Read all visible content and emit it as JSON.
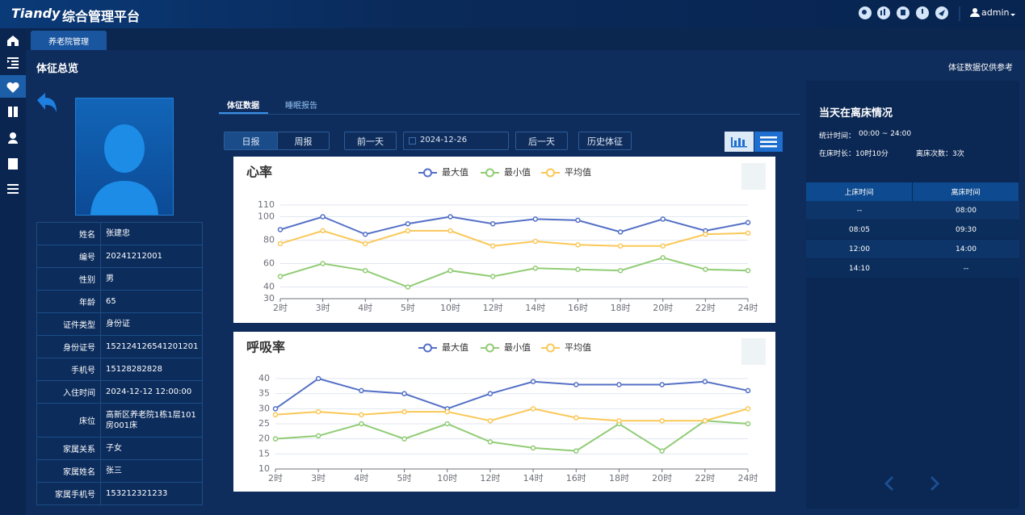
{
  "header": {
    "brand": "Tiandy",
    "title": "综合管理平台",
    "user": "admin"
  },
  "tabs": [
    "养老院管理"
  ],
  "page": {
    "title": "体征总览",
    "note": "体征数据仅供参考"
  },
  "profile": {
    "rows": [
      [
        "姓名",
        "张建忠"
      ],
      [
        "编号",
        "20241212001"
      ],
      [
        "性别",
        "男"
      ],
      [
        "年龄",
        "65"
      ],
      [
        "证件类型",
        "身份证"
      ],
      [
        "身份证号",
        "152124126541201201"
      ],
      [
        "手机号",
        "15128282828"
      ],
      [
        "入住时间",
        "2024-12-12 12:00:00"
      ],
      [
        "床位",
        "高新区养老院1栋1层101房001床"
      ],
      [
        "家属关系",
        "子女"
      ],
      [
        "家属姓名",
        "张三"
      ],
      [
        "家属手机号",
        "153212321233"
      ]
    ]
  },
  "view_tabs": [
    "体征数据",
    "睡眠报告"
  ],
  "toolbar": {
    "day": "日报",
    "week": "周报",
    "prev": "前一天",
    "date": "2024-12-26",
    "next": "后一天",
    "history": "历史体征"
  },
  "chart_data": [
    {
      "type": "line",
      "title": "心率",
      "categories": [
        "2时",
        "3时",
        "4时",
        "5时",
        "10时",
        "12时",
        "14时",
        "16时",
        "18时",
        "20时",
        "22时",
        "24时"
      ],
      "ylim": [
        30,
        110
      ],
      "yticks": [
        30,
        40,
        60,
        80,
        100,
        110
      ],
      "grid": true,
      "series": [
        {
          "name": "最大值",
          "color": "#5470c6",
          "values": [
            89,
            100,
            85,
            94,
            100,
            94,
            98,
            97,
            87,
            98,
            88,
            95
          ]
        },
        {
          "name": "最小值",
          "color": "#91cc75",
          "values": [
            49,
            60,
            54,
            40,
            54,
            49,
            56,
            55,
            54,
            65,
            55,
            54
          ]
        },
        {
          "name": "平均值",
          "color": "#fac858",
          "values": [
            77,
            88,
            77,
            88,
            88,
            75,
            79,
            76,
            75,
            75,
            85,
            86
          ]
        }
      ]
    },
    {
      "type": "line",
      "title": "呼吸率",
      "categories": [
        "2时",
        "3时",
        "4时",
        "5时",
        "10时",
        "12时",
        "14时",
        "16时",
        "18时",
        "20时",
        "22时",
        "24时"
      ],
      "ylim": [
        10,
        40
      ],
      "yticks": [
        10,
        15,
        20,
        25,
        30,
        35,
        40
      ],
      "grid": true,
      "series": [
        {
          "name": "最大值",
          "color": "#5470c6",
          "values": [
            30,
            40,
            36,
            35,
            30,
            35,
            39,
            38,
            38,
            38,
            39,
            36
          ]
        },
        {
          "name": "最小值",
          "color": "#91cc75",
          "values": [
            20,
            21,
            25,
            20,
            25,
            19,
            17,
            16,
            25,
            16,
            26,
            25
          ]
        },
        {
          "name": "平均值",
          "color": "#fac858",
          "values": [
            28,
            29,
            28,
            29,
            29,
            26,
            30,
            27,
            26,
            26,
            26,
            30
          ]
        }
      ]
    }
  ],
  "bed": {
    "title": "当天在离床情况",
    "stat_label": "统计时间：",
    "stat_value": "00:00 ~ 24:00",
    "in_bed": "在床时长：10时10分",
    "leave_count": "离床次数：3次",
    "table": {
      "headers": [
        "上床时间",
        "离床时间"
      ],
      "rows": [
        [
          "--",
          "08:00"
        ],
        [
          "08:05",
          "09:30"
        ],
        [
          "12:00",
          "14:00"
        ],
        [
          "14:10",
          "--"
        ]
      ]
    }
  }
}
